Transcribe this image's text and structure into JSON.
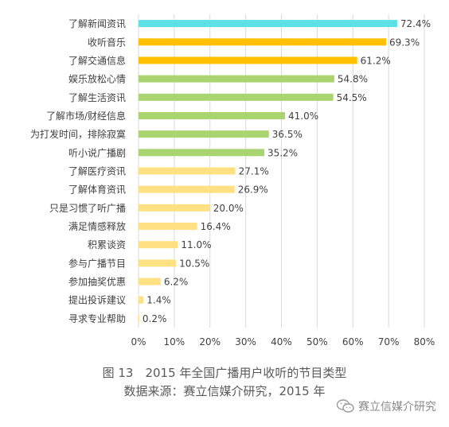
{
  "chart_data": {
    "type": "bar",
    "orientation": "horizontal",
    "categories": [
      "了解新闻资讯",
      "收听音乐",
      "了解交通信息",
      "娱乐放松心情",
      "了解生活资讯",
      "了解市场/财经信息",
      "为打发时间，排除寂寞",
      "听小说广播剧",
      "了解医疗资讯",
      "了解体育资讯",
      "只是习惯了听广播",
      "满足情感释放",
      "积累谈资",
      "参与广播节目",
      "参加抽奖优惠",
      "提出投诉建议",
      "寻求专业帮助"
    ],
    "values": [
      72.4,
      69.3,
      61.2,
      54.8,
      54.5,
      41.0,
      36.5,
      35.2,
      27.1,
      26.9,
      20.0,
      16.4,
      11.0,
      10.5,
      6.2,
      1.4,
      0.2
    ],
    "value_labels": [
      "72.4%",
      "69.3%",
      "61.2%",
      "54.8%",
      "54.5%",
      "41.0%",
      "36.5%",
      "35.2%",
      "27.1%",
      "26.9%",
      "20.0%",
      "16.4%",
      "11.0%",
      "10.5%",
      "6.2%",
      "1.4%",
      "0.2%"
    ],
    "bar_colors": [
      "#5ce1e6",
      "#ffc000",
      "#ffc000",
      "#a9d46f",
      "#a9d46f",
      "#a9d46f",
      "#a9d46f",
      "#a9d46f",
      "#ffe083",
      "#ffe083",
      "#ffe083",
      "#ffe083",
      "#ffe083",
      "#ffe083",
      "#ffe083",
      "#ffe083",
      "#ffe083"
    ],
    "xlim": [
      0,
      80
    ],
    "xticks": [
      0,
      10,
      20,
      30,
      40,
      50,
      60,
      70,
      80
    ],
    "xtick_labels": [
      "0%",
      "10%",
      "20%",
      "30%",
      "40%",
      "50%",
      "60%",
      "70%",
      "80%"
    ],
    "grid": "vertical",
    "title": "图 13　2015 年全国广播用户收听的节目类型",
    "subtitle": "数据来源：赛立信媒介研究，2015 年"
  },
  "watermark": {
    "text": "赛立信媒介研究",
    "icon": "wechat-icon"
  },
  "colors": {
    "grid": "#d9d9d9",
    "text": "#404040",
    "caption": "#595959"
  }
}
